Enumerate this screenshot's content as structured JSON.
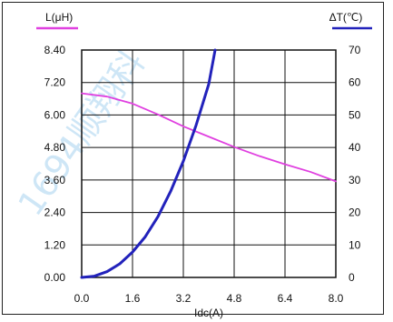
{
  "chart_data": {
    "type": "line",
    "title": "",
    "xlabel": "Idc(A)",
    "y_left_label": "L(μH)",
    "y_right_label": "ΔT(℃)",
    "xlim": [
      0,
      8.0
    ],
    "ylim_left": [
      0,
      8.4
    ],
    "ylim_right": [
      0,
      70
    ],
    "x_ticks": [
      "0.0",
      "1.6",
      "3.2",
      "4.8",
      "6.4",
      "8.0"
    ],
    "y_left_ticks": [
      "0.00",
      "1.20",
      "2.40",
      "3.60",
      "4.80",
      "6.00",
      "7.20",
      "8.40"
    ],
    "y_right_ticks": [
      "0",
      "10",
      "20",
      "30",
      "40",
      "50",
      "60",
      "70"
    ],
    "grid": true,
    "series": [
      {
        "key": "inductance",
        "axis": "left",
        "color": "#e040e0",
        "x": [
          0,
          0.8,
          1.6,
          2.4,
          3.2,
          4.0,
          4.8,
          5.6,
          6.4,
          7.2,
          8.0
        ],
        "y": [
          6.8,
          6.68,
          6.42,
          6.02,
          5.58,
          5.2,
          4.82,
          4.48,
          4.18,
          3.9,
          3.55
        ]
      },
      {
        "key": "temperature-rise",
        "axis": "right",
        "color": "#2222bb",
        "x": [
          0,
          0.4,
          0.8,
          1.2,
          1.6,
          2.0,
          2.4,
          2.8,
          3.2,
          3.6,
          4.0,
          4.2
        ],
        "y": [
          0,
          0.4,
          1.8,
          4.2,
          7.8,
          12.5,
          18.7,
          26.5,
          35.8,
          46.8,
          59.5,
          70
        ]
      }
    ]
  },
  "watermark": "1694顺翔科"
}
